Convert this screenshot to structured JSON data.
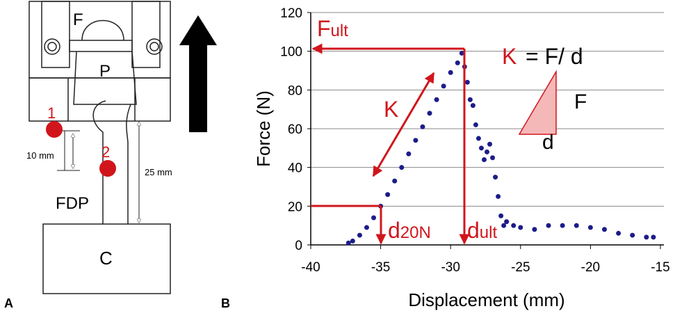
{
  "panel_a": {
    "panel_label": "A",
    "labels": [
      "F",
      "P",
      "1",
      "2",
      "10 mm",
      "25 mm",
      "FDP",
      "C"
    ]
  },
  "chart_data": {
    "type": "scatter",
    "panel_label": "B",
    "xlabel": "Displacement (mm)",
    "ylabel": "Force (N)",
    "xlim": [
      -40,
      -15
    ],
    "xticks": [
      -40,
      -35,
      -30,
      -25,
      -20,
      -15
    ],
    "ylim": [
      0,
      120
    ],
    "yticks": [
      0,
      20,
      40,
      60,
      80,
      100,
      120
    ],
    "grid": true,
    "series": [
      {
        "color": "#1c1c8a",
        "x": [
          -37.3,
          -37,
          -36.5,
          -36,
          -35.5,
          -35,
          -34.5,
          -34,
          -33.5,
          -33,
          -32.5,
          -32,
          -31.5,
          -31,
          -30.5,
          -30,
          -29.5,
          -29.2,
          -29,
          -28.8,
          -28.6,
          -28.4,
          -28.2,
          -28,
          -27.8,
          -27.6,
          -27.4,
          -27.2,
          -27,
          -26.8,
          -26.6,
          -26.4,
          -26.2,
          -26,
          -25.5,
          -25,
          -24,
          -23,
          -22,
          -21,
          -20,
          -19,
          -18,
          -17,
          -16,
          -15.5
        ],
        "values": [
          1,
          2,
          5,
          9,
          14,
          20,
          26,
          33,
          40,
          47,
          54,
          61,
          68,
          75,
          82,
          89,
          94,
          99,
          92,
          84,
          75,
          72,
          62,
          55,
          50,
          44,
          48,
          52,
          45,
          35,
          25,
          15,
          10,
          12,
          10,
          9,
          8,
          10,
          10,
          10,
          9,
          8,
          6,
          5,
          4,
          4
        ]
      }
    ],
    "annotations": [
      {
        "text": "F",
        "sub": "ult"
      },
      {
        "text": "K"
      },
      {
        "text": "K"
      },
      {
        "text": "= F/ d"
      },
      {
        "text": "F"
      },
      {
        "text": "d"
      },
      {
        "text": "d",
        "sub": "20N"
      },
      {
        "text": "d",
        "sub": "ult"
      }
    ]
  }
}
